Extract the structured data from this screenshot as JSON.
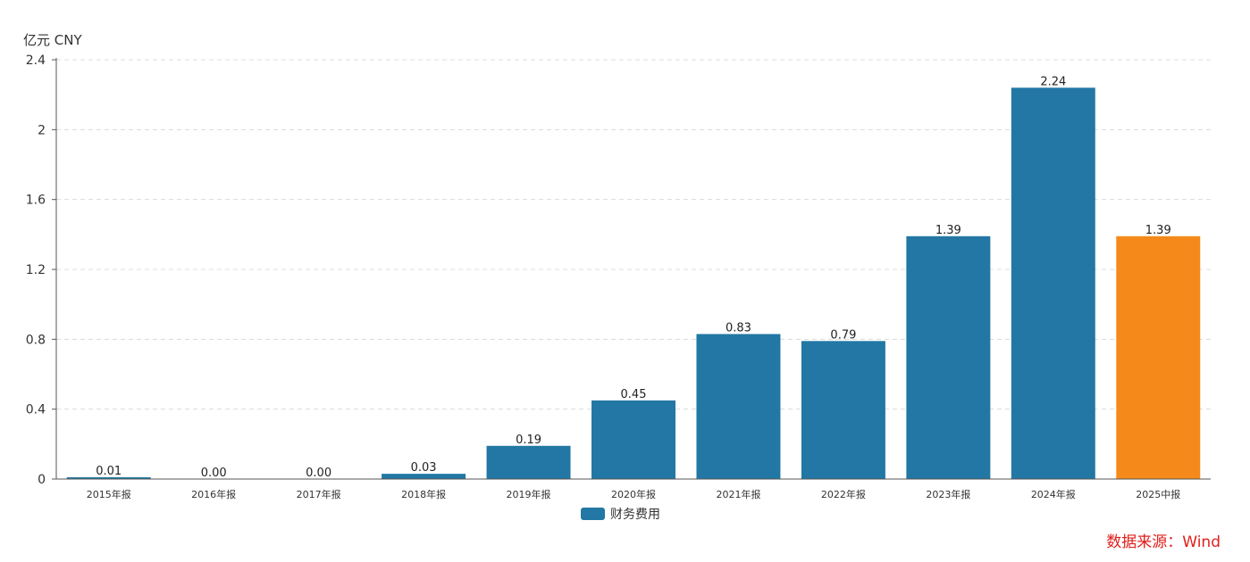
{
  "chart_data": {
    "type": "bar",
    "unit_label": "亿元  CNY",
    "categories": [
      "2015年报",
      "2016年报",
      "2017年报",
      "2018年报",
      "2019年报",
      "2020年报",
      "2021年报",
      "2022年报",
      "2023年报",
      "2024年报",
      "2025中报"
    ],
    "series": [
      {
        "name": "财务费用",
        "values": [
          0.01,
          0.0,
          0.0,
          0.03,
          0.19,
          0.45,
          0.83,
          0.79,
          1.39,
          2.24,
          1.39
        ],
        "data_labels": [
          "0.01",
          "0.00",
          "0.00",
          "0.03",
          "0.19",
          "0.45",
          "0.83",
          "0.79",
          "1.39",
          "2.24",
          "1.39"
        ],
        "color": "#2277a4",
        "highlight_color": "#f5891a",
        "highlight_index": 10
      }
    ],
    "ylim": [
      0,
      2.4
    ],
    "yticks": [
      "0",
      "0.4",
      "0.8",
      "1.2",
      "1.6",
      "2",
      "2.4"
    ],
    "ytick_values": [
      0,
      0.4,
      0.8,
      1.2,
      1.6,
      2.0,
      2.4
    ],
    "grid": true,
    "legend": "bottom-center"
  },
  "source": "数据来源：Wind"
}
